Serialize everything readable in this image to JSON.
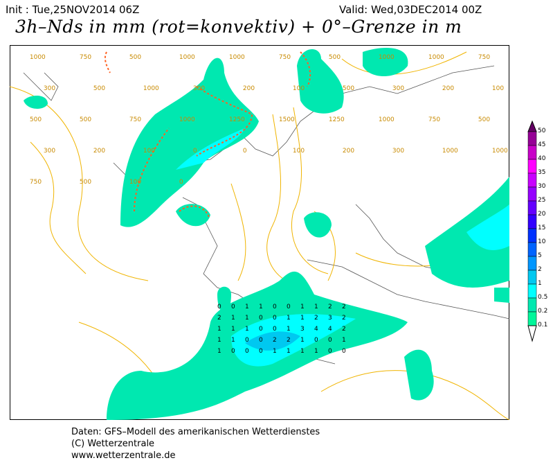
{
  "header": {
    "init": "Init : Tue,25NOV2014 06Z",
    "valid": "Valid: Wed,03DEC2014 00Z",
    "title": "3h–Nds in mm (rot=konvektiv) + 0°–Grenze in m"
  },
  "legend": {
    "levels": [
      "50",
      "45",
      "40",
      "35",
      "30",
      "25",
      "20",
      "15",
      "10",
      "5",
      "2",
      "1",
      "0.5",
      "0.2",
      "0.1"
    ],
    "colors": [
      "#640064",
      "#960096",
      "#c800c8",
      "#ff00ff",
      "#c800ff",
      "#9600ff",
      "#6400ff",
      "#3200ff",
      "#0032ff",
      "#0064ff",
      "#0096ff",
      "#00c8f0",
      "#00ffff",
      "#00e8b0",
      "#00f79b",
      "#ffffff"
    ]
  },
  "map": {
    "land_color": "#ffffff",
    "contour_color": "#f0b400",
    "convective_color": "#ff6020",
    "contour_labels": [
      "1000",
      "750",
      "500",
      "1000",
      "1000",
      "750",
      "500",
      "1000",
      "1000",
      "750",
      "300",
      "500",
      "1000",
      "300",
      "200",
      "100",
      "500",
      "300",
      "200",
      "100",
      "500",
      "500",
      "750",
      "1000",
      "1250",
      "1500",
      "1250",
      "1000",
      "750",
      "500",
      "300",
      "200",
      "100",
      "0",
      "0",
      "100",
      "200",
      "300",
      "1000",
      "1000",
      "750",
      "500",
      "100",
      "0"
    ],
    "precip_values": [
      "0",
      "0",
      "1",
      "1",
      "0",
      "0",
      "1",
      "1",
      "2",
      "2",
      "2",
      "1",
      "1",
      "0",
      "0",
      "1",
      "1",
      "2",
      "3",
      "2",
      "1",
      "1",
      "1",
      "0",
      "0",
      "1",
      "3",
      "4",
      "4",
      "2",
      "1",
      "1",
      "0",
      "0",
      "2",
      "2",
      "1",
      "0",
      "0",
      "1",
      "1",
      "0",
      "0",
      "0",
      "1",
      "1",
      "1",
      "1",
      "0",
      "0"
    ]
  },
  "footer": {
    "line1": "Daten: GFS–Modell des amerikanischen Wetterdienstes",
    "line2": "(C) Wetterzentrale",
    "line3": "www.wetterzentrale.de"
  }
}
